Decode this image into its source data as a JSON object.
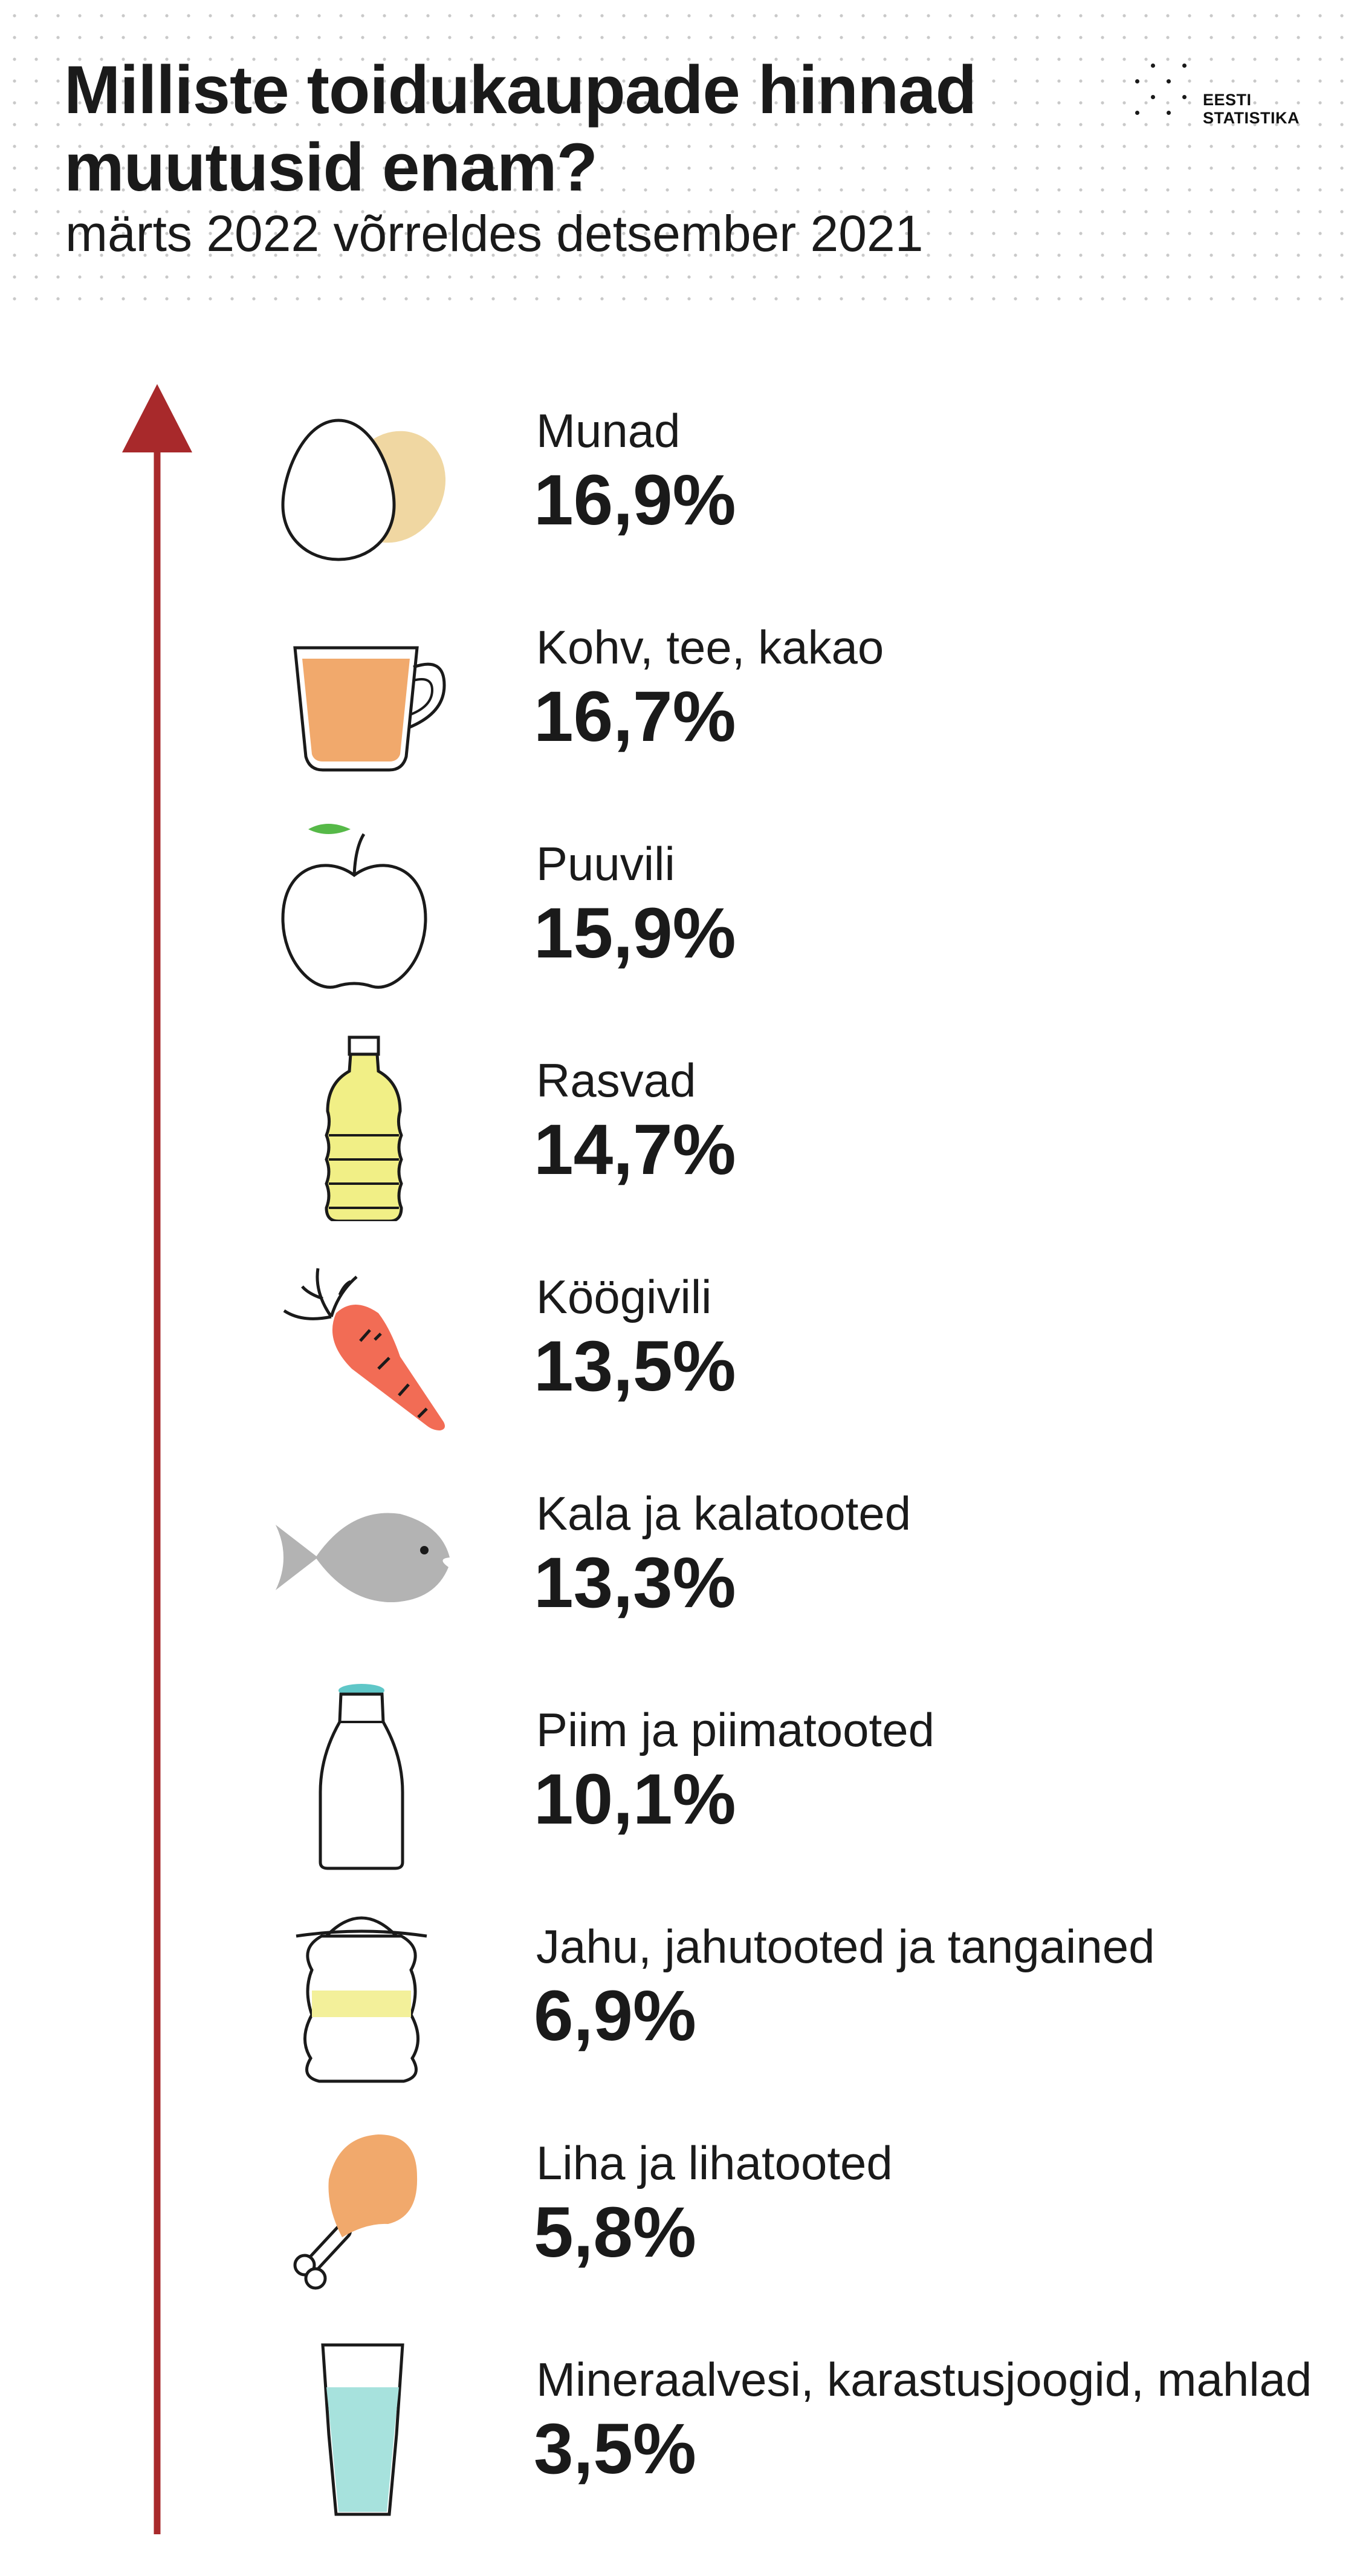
{
  "header": {
    "title_line1": "Milliste toidukaupade hinnad",
    "title_line2": "muutusid enam?",
    "subtitle": "märts 2022 võrreldes detsember 2021",
    "logo_line1": "EESTI",
    "logo_line2": "STATISTIKA"
  },
  "colors": {
    "arrow": "#a8292b",
    "egg_shadow": "#f0d7a2",
    "coffee": "#f1a96c",
    "leaf": "#56b948",
    "oil": "#f1ef86",
    "carrot": "#f26c55",
    "fish": "#b3b3b3",
    "milk_cap": "#5fc7c8",
    "flour_band": "#f3f09a",
    "chicken": "#f1a96c",
    "water": "#a7e2dd"
  },
  "chart_data": {
    "type": "table",
    "title": "Milliste toidukaupade hinnad muutusid enam?",
    "subtitle": "märts 2022 võrreldes detsember 2021",
    "items": [
      {
        "category": "Munad",
        "value_label": "16,9%",
        "value": 16.9,
        "icon": "egg-icon"
      },
      {
        "category": "Kohv, tee, kakao",
        "value_label": "16,7%",
        "value": 16.7,
        "icon": "coffee-cup-icon"
      },
      {
        "category": "Puuvili",
        "value_label": "15,9%",
        "value": 15.9,
        "icon": "apple-icon"
      },
      {
        "category": "Rasvad",
        "value_label": "14,7%",
        "value": 14.7,
        "icon": "oil-bottle-icon"
      },
      {
        "category": "Köögivili",
        "value_label": "13,5%",
        "value": 13.5,
        "icon": "carrot-icon"
      },
      {
        "category": "Kala ja kalatooted",
        "value_label": "13,3%",
        "value": 13.3,
        "icon": "fish-icon"
      },
      {
        "category": "Piim ja piimatooted",
        "value_label": "10,1%",
        "value": 10.1,
        "icon": "milk-bottle-icon"
      },
      {
        "category": "Jahu, jahutooted ja tangained",
        "value_label": "6,9%",
        "value": 6.9,
        "icon": "flour-sack-icon"
      },
      {
        "category": "Liha ja lihatooted",
        "value_label": "5,8%",
        "value": 5.8,
        "icon": "chicken-leg-icon"
      },
      {
        "category": "Mineraalvesi, karastusjoogid, mahlad",
        "value_label": "3,5%",
        "value": 3.5,
        "icon": "water-glass-icon"
      }
    ]
  }
}
